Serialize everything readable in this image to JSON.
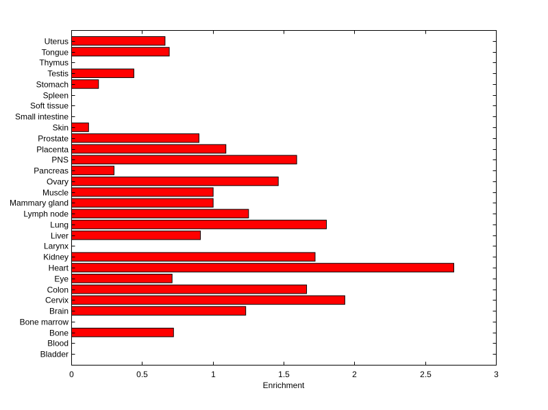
{
  "chart_data": {
    "type": "bar",
    "orientation": "horizontal",
    "title": "",
    "xlabel": "Enrichment",
    "ylabel": "",
    "xlim": [
      0,
      3
    ],
    "xticks": [
      "0",
      "0.5",
      "1",
      "1.5",
      "2",
      "2.5",
      "3"
    ],
    "grid": false,
    "legend": "none",
    "bar_color": "#ff0000",
    "bar_edge_color": "#000000",
    "categories": [
      "Bladder",
      "Blood",
      "Bone",
      "Bone marrow",
      "Brain",
      "Cervix",
      "Colon",
      "Eye",
      "Heart",
      "Kidney",
      "Larynx",
      "Liver",
      "Lung",
      "Lymph node",
      "Mammary gland",
      "Muscle",
      "Ovary",
      "Pancreas",
      "PNS",
      "Placenta",
      "Prostate",
      "Skin",
      "Small intestine",
      "Soft tissue",
      "Spleen",
      "Stomach",
      "Testis",
      "Thymus",
      "Tongue",
      "Uterus"
    ],
    "values": [
      0,
      0,
      0.72,
      0,
      1.23,
      1.93,
      1.66,
      0.71,
      2.7,
      1.72,
      0,
      0.91,
      1.8,
      1.25,
      1.0,
      1.0,
      1.46,
      0.3,
      1.59,
      1.09,
      0.9,
      0.12,
      0,
      0,
      0,
      0.19,
      0.44,
      0,
      0.69,
      0.66
    ]
  }
}
